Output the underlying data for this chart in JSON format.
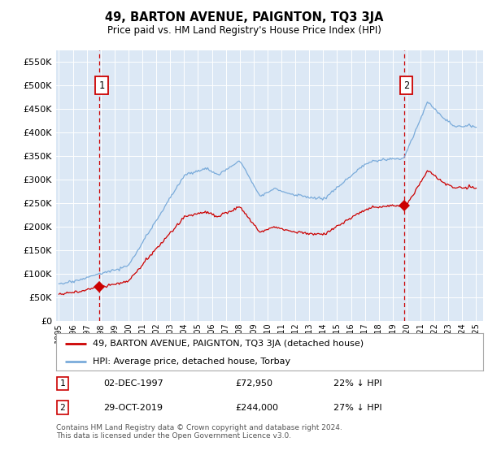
{
  "title": "49, BARTON AVENUE, PAIGNTON, TQ3 3JA",
  "subtitle": "Price paid vs. HM Land Registry's House Price Index (HPI)",
  "footer": "Contains HM Land Registry data © Crown copyright and database right 2024.\nThis data is licensed under the Open Government Licence v3.0.",
  "legend_line1": "49, BARTON AVENUE, PAIGNTON, TQ3 3JA (detached house)",
  "legend_line2": "HPI: Average price, detached house, Torbay",
  "transaction1_date": "02-DEC-1997",
  "transaction1_price": "£72,950",
  "transaction1_hpi": "22% ↓ HPI",
  "transaction2_date": "29-OCT-2019",
  "transaction2_price": "£244,000",
  "transaction2_hpi": "27% ↓ HPI",
  "yticks": [
    0,
    50000,
    100000,
    150000,
    200000,
    250000,
    300000,
    350000,
    400000,
    450000,
    500000,
    550000
  ],
  "ylim": [
    0,
    575000
  ],
  "plot_bg_color": "#dce8f5",
  "hpi_color": "#7aabda",
  "price_color": "#cc0000",
  "vline_color": "#cc0000",
  "transaction1_year": 1997.92,
  "transaction2_year": 2019.83,
  "transaction1_price_val": 72950,
  "transaction2_price_val": 244000,
  "xlim_start": 1994.8,
  "xlim_end": 2025.5,
  "xticks": [
    1995,
    1996,
    1997,
    1998,
    1999,
    2000,
    2001,
    2002,
    2003,
    2004,
    2005,
    2006,
    2007,
    2008,
    2009,
    2010,
    2011,
    2012,
    2013,
    2014,
    2015,
    2016,
    2017,
    2018,
    2019,
    2020,
    2021,
    2022,
    2023,
    2024,
    2025
  ]
}
